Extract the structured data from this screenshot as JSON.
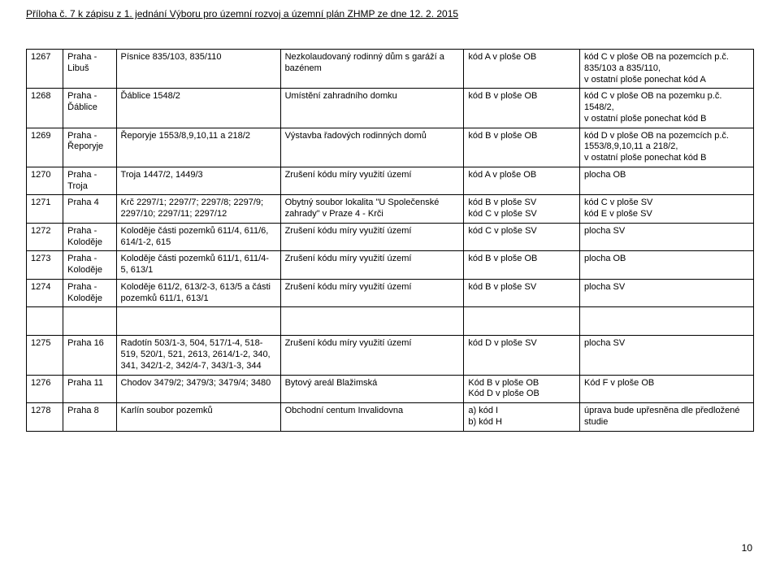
{
  "header": "Příloha č. 7 k zápisu z 1. jednání Výboru pro územní rozvoj a územní plán ZHMP ze dne 12. 2. 2015",
  "pageNumber": "10",
  "rows": [
    {
      "n": "1267",
      "loc": "Praha - Libuš",
      "desc": "Písnice 835/103, 835/110",
      "action": "Nezkolaudovaný rodinný dům s garáží a bazénem",
      "code": "kód A v ploše OB",
      "result": "kód C v ploše OB na pozemcích p.č. 835/103 a 835/110,\nv ostatní ploše ponechat kód A"
    },
    {
      "n": "1268",
      "loc": "Praha - Ďáblice",
      "desc": "Ďáblice 1548/2",
      "action": "Umístění zahradního domku",
      "code": "kód B v ploše OB",
      "result": "kód C v ploše OB na pozemku p.č. 1548/2,\nv ostatní ploše ponechat kód B"
    },
    {
      "n": "1269",
      "loc": "Praha - Řeporyje",
      "desc": "Řeporyje 1553/8,9,10,11 a 218/2",
      "action": "Výstavba řadových rodinných domů",
      "code": "kód B v ploše OB",
      "result": "kód D v ploše OB na pozemcích p.č. 1553/8,9,10,11 a 218/2,\nv ostatní ploše ponechat kód B"
    },
    {
      "n": "1270",
      "loc": "Praha - Troja",
      "desc": "Troja 1447/2, 1449/3",
      "action": "Zrušení kódu míry využití území",
      "code": "kód A v ploše OB",
      "result": "plocha OB"
    },
    {
      "n": "1271",
      "loc": "Praha 4",
      "desc": "Krč 2297/1; 2297/7; 2297/8; 2297/9; 2297/10; 2297/11; 2297/12",
      "action": "Obytný soubor lokalita \"U Společenské zahrady\" v Praze 4 - Krči",
      "code": "kód B v ploše SV\nkód C v ploše SV",
      "result": "kód C v ploše SV\nkód E v ploše SV"
    },
    {
      "n": "1272",
      "loc": "Praha - Koloděje",
      "desc": "Koloděje části pozemků 611/4, 611/6, 614/1-2, 615",
      "action": "Zrušení kódu míry využití území",
      "code": "kód C v ploše SV",
      "result": "plocha SV"
    },
    {
      "n": "1273",
      "loc": "Praha - Koloděje",
      "desc": "Koloděje části pozemků 611/1, 611/4-5, 613/1",
      "action": "Zrušení kódu míry využití území",
      "code": "kód B v ploše OB",
      "result": "plocha OB"
    },
    {
      "n": "1274",
      "loc": "Praha - Koloděje",
      "desc": "Koloděje 611/2, 613/2-3, 613/5 a části pozemků 611/1, 613/1",
      "action": "Zrušení kódu míry využití území",
      "code": "kód B v ploše SV",
      "result": "plocha SV"
    },
    {
      "gap": true
    },
    {
      "n": "1275",
      "loc": "Praha 16",
      "desc": "Radotín 503/1-3, 504, 517/1-4, 518-519, 520/1, 521, 2613, 2614/1-2, 340, 341, 342/1-2, 342/4-7, 343/1-3, 344",
      "action": "Zrušení kódu míry využití území",
      "code": "kód D v ploše SV",
      "result": "plocha SV"
    },
    {
      "n": "1276",
      "loc": "Praha 11",
      "desc": "Chodov 3479/2; 3479/3; 3479/4; 3480",
      "action": "Bytový areál Blažimská",
      "code": "Kód B v ploše OB\nKód D v ploše OB",
      "result": "Kód F v ploše OB"
    },
    {
      "n": "1278",
      "loc": "Praha 8",
      "desc": "Karlín soubor pozemků",
      "action": "Obchodní centum Invalidovna",
      "code": "a) kód I\nb) kód H",
      "result": "úprava bude upřesněna dle předložené studie"
    }
  ]
}
